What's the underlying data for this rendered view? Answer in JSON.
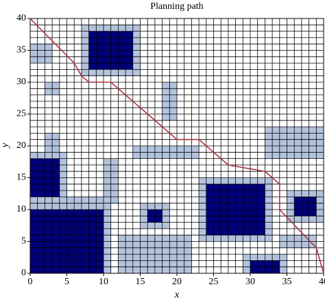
{
  "chart_data": {
    "type": "grid_path",
    "title": "Planning path",
    "xlabel": "x",
    "ylabel": "y",
    "xlim": [
      0,
      40
    ],
    "ylim": [
      0,
      40
    ],
    "xticks": [
      0,
      5,
      10,
      15,
      20,
      25,
      30,
      35,
      40
    ],
    "yticks": [
      0,
      5,
      10,
      15,
      20,
      25,
      30,
      35,
      40
    ],
    "grid": true,
    "grid_step": 1,
    "obstacle_color": "#00007a",
    "inflated_color": "#b3c3de",
    "path_color": "#b03040",
    "inflated": [
      [
        7,
        31,
        15,
        39
      ],
      [
        0,
        11,
        5,
        19
      ],
      [
        0,
        0,
        11,
        11
      ],
      [
        4,
        11,
        11,
        12
      ],
      [
        15,
        7,
        19,
        11
      ],
      [
        23,
        5,
        33,
        15
      ],
      [
        35,
        8,
        40,
        13
      ],
      [
        29,
        0,
        35,
        3
      ],
      [
        0,
        33,
        3,
        36
      ],
      [
        2,
        28,
        4,
        30
      ],
      [
        18,
        24,
        20,
        30
      ],
      [
        14,
        18,
        23,
        20
      ],
      [
        32,
        18,
        40,
        23
      ],
      [
        12,
        0,
        22,
        6
      ],
      [
        2,
        18,
        4,
        22
      ],
      [
        10,
        11,
        12,
        18
      ],
      [
        34,
        4,
        39,
        6
      ]
    ],
    "obstacles": [
      [
        8,
        32,
        14,
        38
      ],
      [
        0,
        12,
        4,
        18
      ],
      [
        0,
        0,
        10,
        10
      ],
      [
        16,
        8,
        18,
        10
      ],
      [
        24,
        6,
        32,
        14
      ],
      [
        36,
        9,
        39,
        12
      ],
      [
        30,
        0,
        34,
        2
      ]
    ],
    "path": {
      "x": [
        0,
        6,
        7,
        8,
        11,
        20,
        23,
        27,
        32,
        34,
        34,
        39,
        40
      ],
      "y": [
        40,
        33,
        31,
        30,
        30,
        21,
        21,
        17,
        16,
        14,
        10,
        4,
        0
      ]
    }
  }
}
